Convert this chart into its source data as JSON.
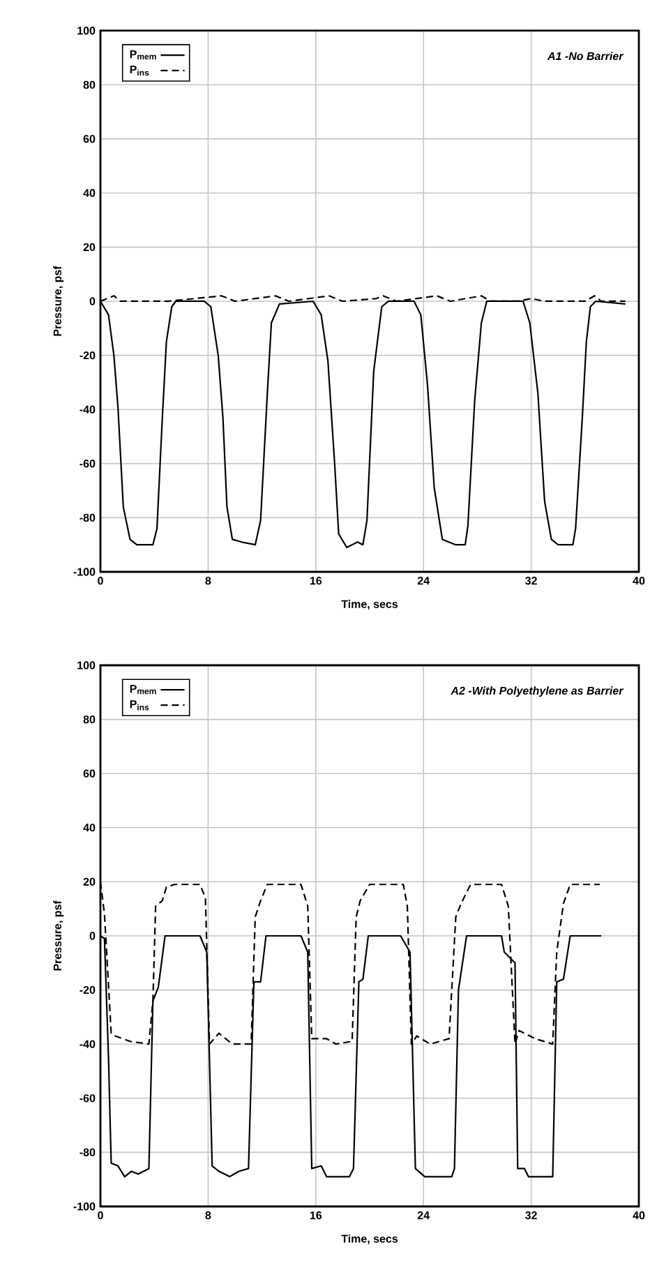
{
  "chart_data": [
    {
      "type": "line",
      "title": "A1 -No Barrier",
      "xlabel": "Time, secs",
      "ylabel": "Pressure, psf",
      "xlim": [
        0,
        40
      ],
      "ylim": [
        -100,
        100
      ],
      "xticks": [
        0,
        8,
        16,
        24,
        32,
        40
      ],
      "yticks": [
        -100,
        -80,
        -60,
        -40,
        -20,
        0,
        20,
        40,
        60,
        80,
        100
      ],
      "grid": true,
      "legend": "top left",
      "marker": "none",
      "series": [
        {
          "name": "P$_{mem}$",
          "color": "#000000",
          "line_style": "solid",
          "x": [
            0,
            0.6,
            1.0,
            1.3,
            1.7,
            2.2,
            2.7,
            3.9,
            4.2,
            4.6,
            4.9,
            5.3,
            5.6,
            7.7,
            8.2,
            8.75,
            9.1,
            9.4,
            9.8,
            10.5,
            11.5,
            11.9,
            12.4,
            12.7,
            13.3,
            15.8,
            16.4,
            16.9,
            17.4,
            17.7,
            18.3,
            19.1,
            19.5,
            19.8,
            20.3,
            20.9,
            21.4,
            23.3,
            23.8,
            24.3,
            24.8,
            25.4,
            26.4,
            27.1,
            27.3,
            27.8,
            28.3,
            28.7,
            31.4,
            31.9,
            32.5,
            33.0,
            33.5,
            34.0,
            35.1,
            35.3,
            35.8,
            36.1,
            36.4,
            36.8,
            39.0
          ],
          "values": [
            0,
            -5,
            -20,
            -39,
            -76,
            -88,
            -90,
            -90,
            -84,
            -43,
            -15,
            -2,
            0,
            0,
            -2,
            -20,
            -43,
            -76,
            -88,
            -89,
            -90,
            -81,
            -34,
            -8,
            -1,
            0,
            -5,
            -22,
            -60,
            -86,
            -91,
            -89,
            -90,
            -81,
            -26,
            -2,
            0,
            0,
            -5,
            -31,
            -69,
            -88,
            -90,
            -90,
            -83,
            -37,
            -8,
            0,
            0,
            -8,
            -34,
            -74,
            -88,
            -90,
            -90,
            -84,
            -43,
            -15,
            -2,
            0,
            -1
          ]
        },
        {
          "name": "P$_{ins}$",
          "color": "#000000",
          "line_style": "dashed",
          "x": [
            0,
            1,
            1.5,
            4,
            5,
            9,
            10,
            13,
            14,
            17,
            18,
            20.5,
            21,
            22,
            25,
            26,
            28.3,
            29,
            31,
            32,
            33,
            36,
            36.7,
            37.2,
            39
          ],
          "values": [
            0,
            2,
            0,
            0,
            0,
            2,
            0,
            2,
            0,
            2,
            0,
            1,
            2,
            0,
            2,
            0,
            2,
            0,
            0,
            1,
            0,
            0,
            2,
            0,
            0
          ]
        }
      ]
    },
    {
      "type": "line",
      "title": "A2 -With Polyethylene as Barrier",
      "xlabel": "Time, secs",
      "ylabel": "Pressure, psf",
      "xlim": [
        0,
        40
      ],
      "ylim": [
        -100,
        100
      ],
      "xticks": [
        0,
        8,
        16,
        24,
        32,
        40
      ],
      "yticks": [
        -100,
        -80,
        -60,
        -40,
        -20,
        0,
        20,
        40,
        60,
        80,
        100
      ],
      "grid": true,
      "legend": "top left",
      "marker": "none",
      "series": [
        {
          "name": "P$_{mem}$",
          "color": "#000000",
          "line_style": "solid",
          "x": [
            0,
            0.3,
            0.6,
            0.8,
            1.3,
            1.8,
            2.3,
            2.8,
            3.6,
            3.9,
            4.3,
            4.8,
            7.4,
            7.9,
            8.3,
            8.8,
            9.6,
            10.3,
            11.0,
            11.4,
            11.9,
            12.3,
            14.9,
            15.4,
            15.7,
            16.4,
            16.8,
            18.5,
            18.8,
            19.2,
            19.5,
            19.9,
            22.3,
            23.0,
            23.4,
            24.1,
            26.1,
            26.3,
            26.6,
            27.2,
            29.8,
            30.0,
            30.8,
            31.0,
            31.5,
            31.8,
            33.6,
            33.9,
            34.4,
            34.9,
            37.2
          ],
          "values": [
            0,
            -1,
            -45,
            -84,
            -85,
            -89,
            -87,
            -88,
            -86,
            -24,
            -19,
            0,
            0,
            -6,
            -85,
            -87,
            -89,
            -87,
            -86,
            -17,
            -17,
            0,
            0,
            -6,
            -86,
            -85,
            -89,
            -89,
            -86,
            -17,
            -16,
            0,
            0,
            -6,
            -86,
            -89,
            -89,
            -86,
            -20,
            0,
            0,
            -6,
            -10,
            -86,
            -86,
            -89,
            -89,
            -17,
            -16,
            0,
            0
          ]
        },
        {
          "name": "P$_{ins}$",
          "color": "#000000",
          "line_style": "dashed",
          "x": [
            0,
            0.3,
            0.8,
            1.1,
            2.2,
            3.6,
            3.9,
            4.1,
            4.6,
            4.9,
            5.5,
            7.4,
            7.8,
            8.1,
            8.8,
            9.8,
            11.2,
            11.5,
            11.9,
            12.4,
            14.9,
            15.4,
            15.7,
            16.8,
            17.5,
            18.7,
            19.0,
            19.3,
            20.0,
            22.5,
            22.8,
            23.1,
            23.5,
            24.5,
            25.9,
            26.4,
            26.8,
            27.5,
            29.8,
            30.3,
            30.8,
            31.1,
            32.3,
            33.6,
            33.9,
            34.4,
            34.9,
            37.1
          ],
          "values": [
            20,
            8,
            -36,
            -37,
            -39,
            -40,
            -24,
            11,
            13,
            18,
            19,
            19,
            14,
            -40,
            -36,
            -40,
            -40,
            7,
            13,
            19,
            19,
            11,
            -38,
            -38,
            -40,
            -39,
            7,
            13,
            19,
            19,
            11,
            -40,
            -37,
            -40,
            -38,
            7,
            12,
            19,
            19,
            11,
            -40,
            -35,
            -38,
            -40,
            -6,
            12,
            19,
            19
          ]
        }
      ]
    }
  ]
}
